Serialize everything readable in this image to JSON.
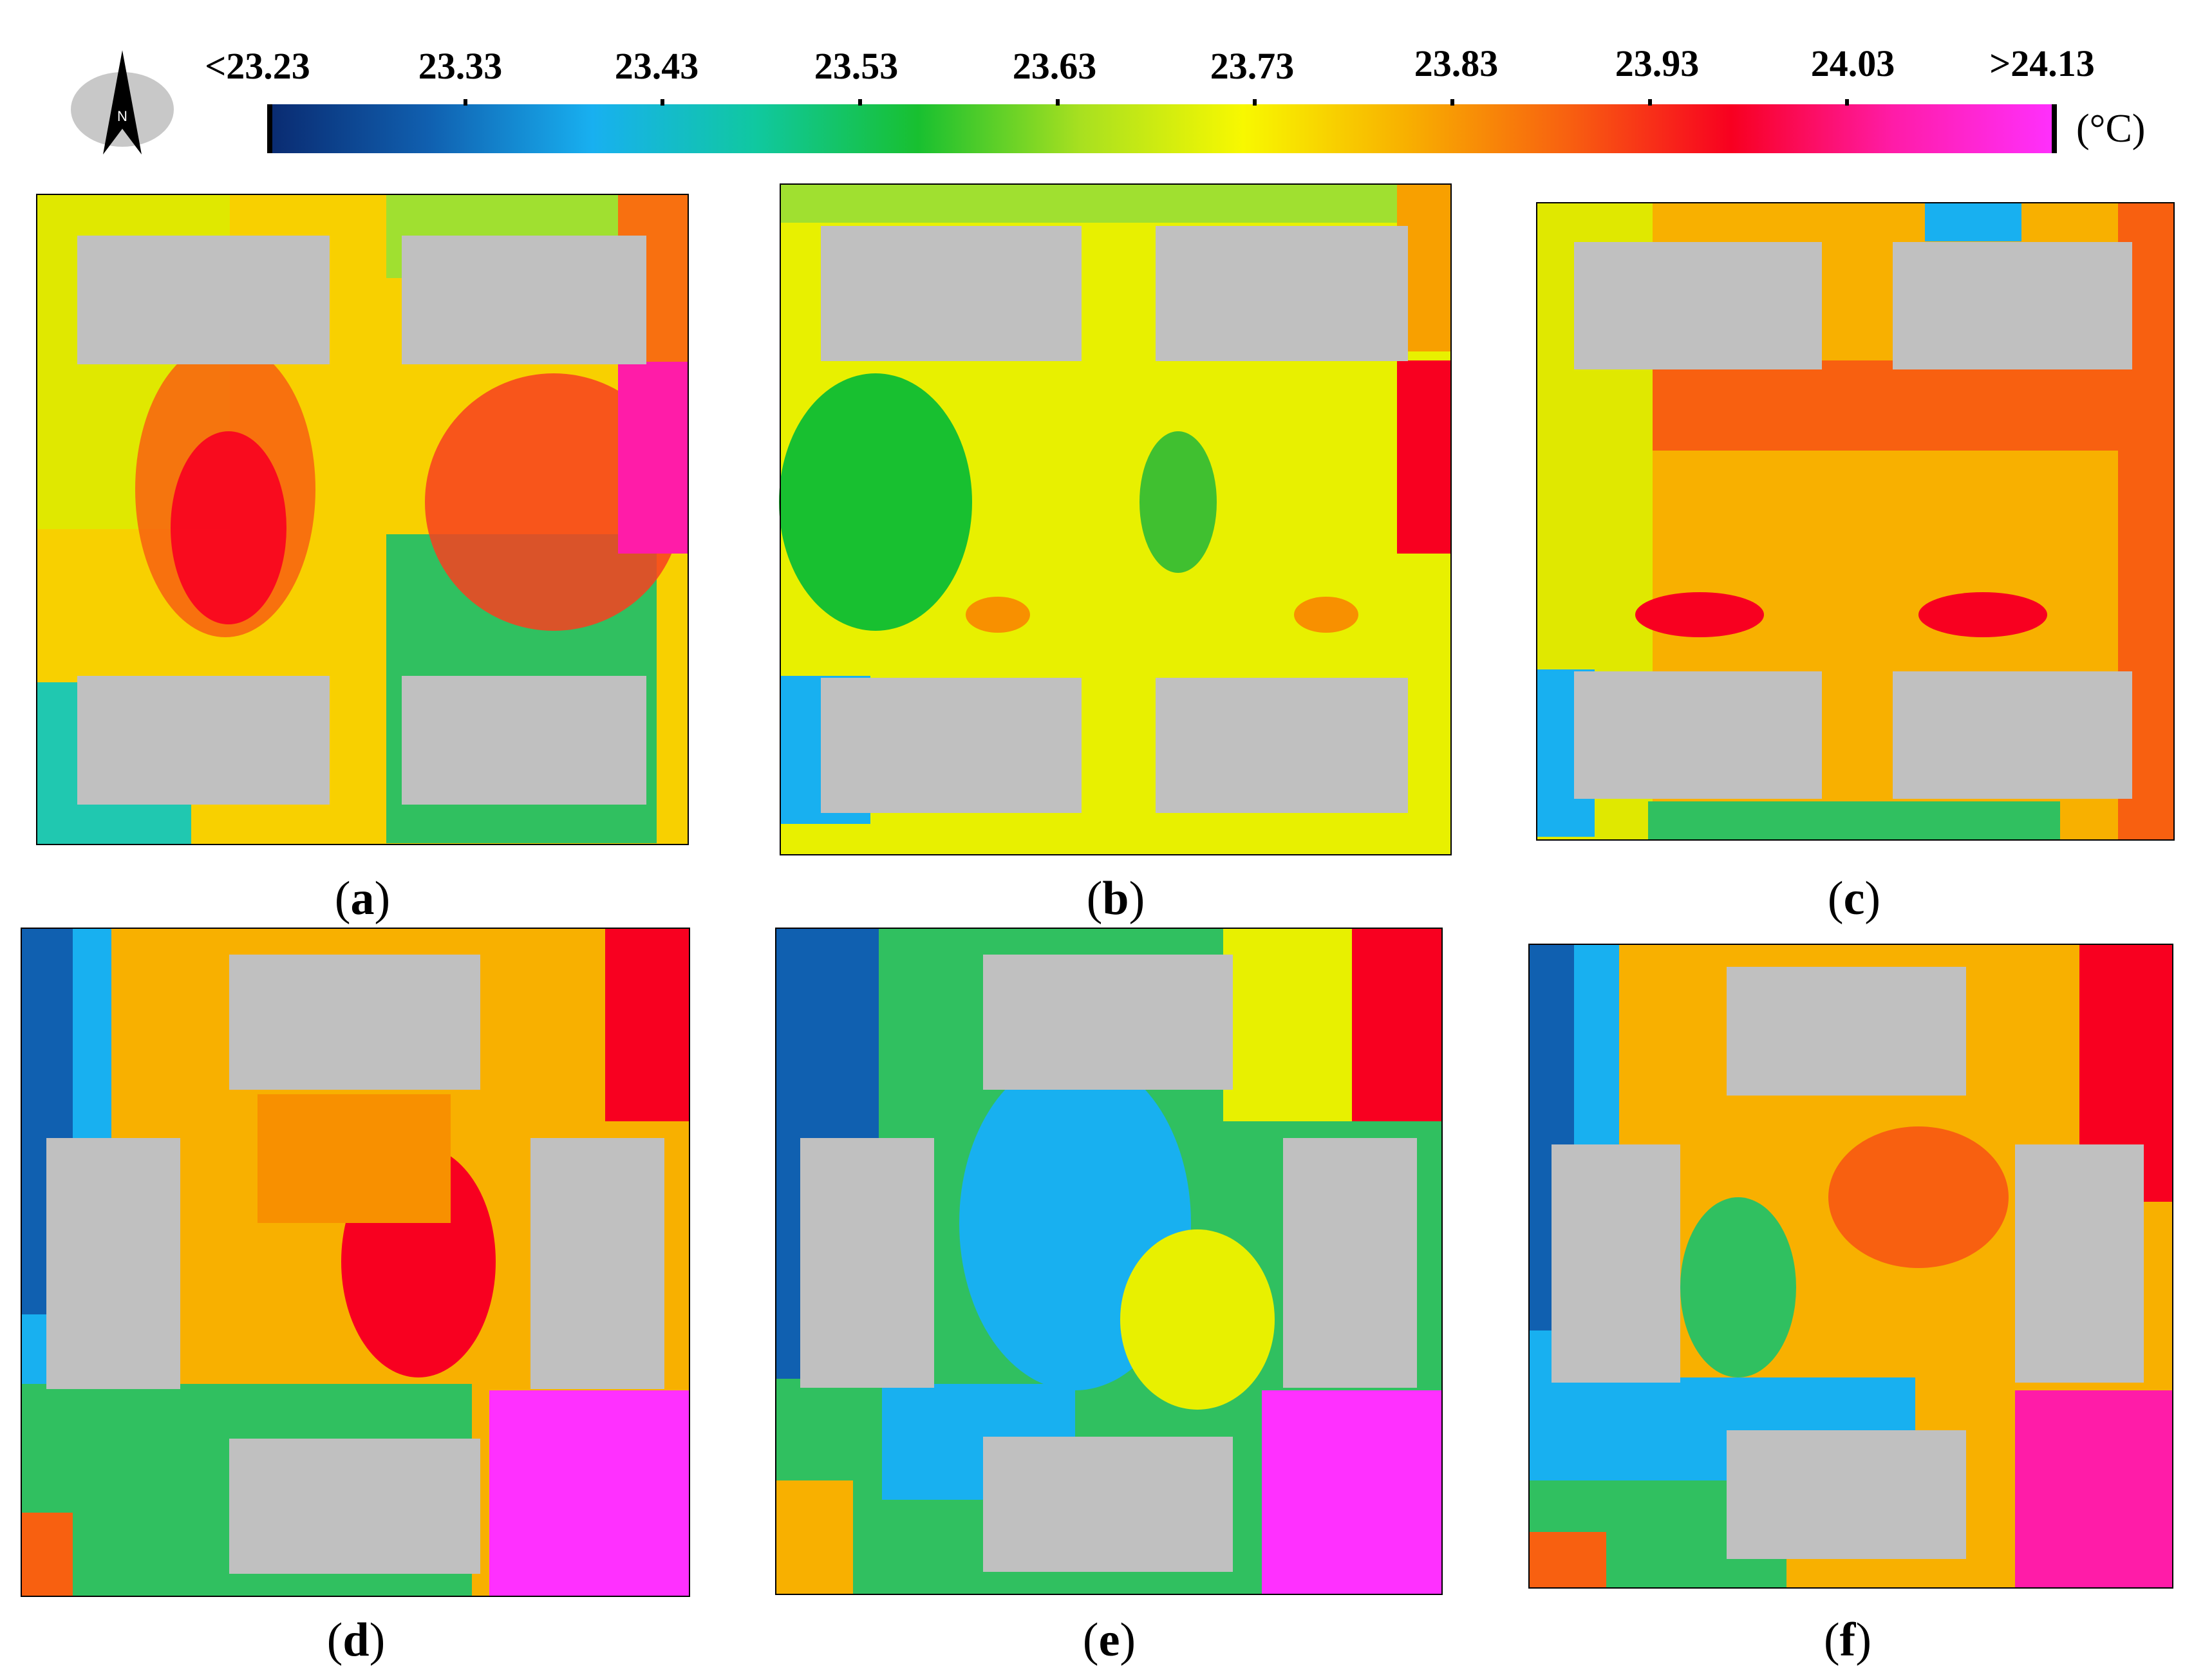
{
  "legend": {
    "tick_labels": [
      "<23.23",
      "23.33",
      "23.43",
      "23.53",
      "23.63",
      "23.73",
      "23.83",
      "23.93",
      "24.03",
      ">24.13"
    ],
    "unit": "(°C)",
    "north_letter": "N",
    "colors": [
      "#0a2a70",
      "#1060b0",
      "#18b0f0",
      "#10c8a0",
      "#18c030",
      "#a8e020",
      "#f8f800",
      "#f8b000",
      "#f86010",
      "#f80020",
      "#ff1ca8",
      "#ff30ff"
    ]
  },
  "panels": [
    {
      "label": "a",
      "layout": "parallel"
    },
    {
      "label": "b",
      "layout": "parallel"
    },
    {
      "label": "c",
      "layout": "parallel"
    },
    {
      "label": "d",
      "layout": "enclosed"
    },
    {
      "label": "e",
      "layout": "enclosed"
    },
    {
      "label": "f",
      "layout": "enclosed"
    }
  ],
  "building_color": "#c0c0c0"
}
